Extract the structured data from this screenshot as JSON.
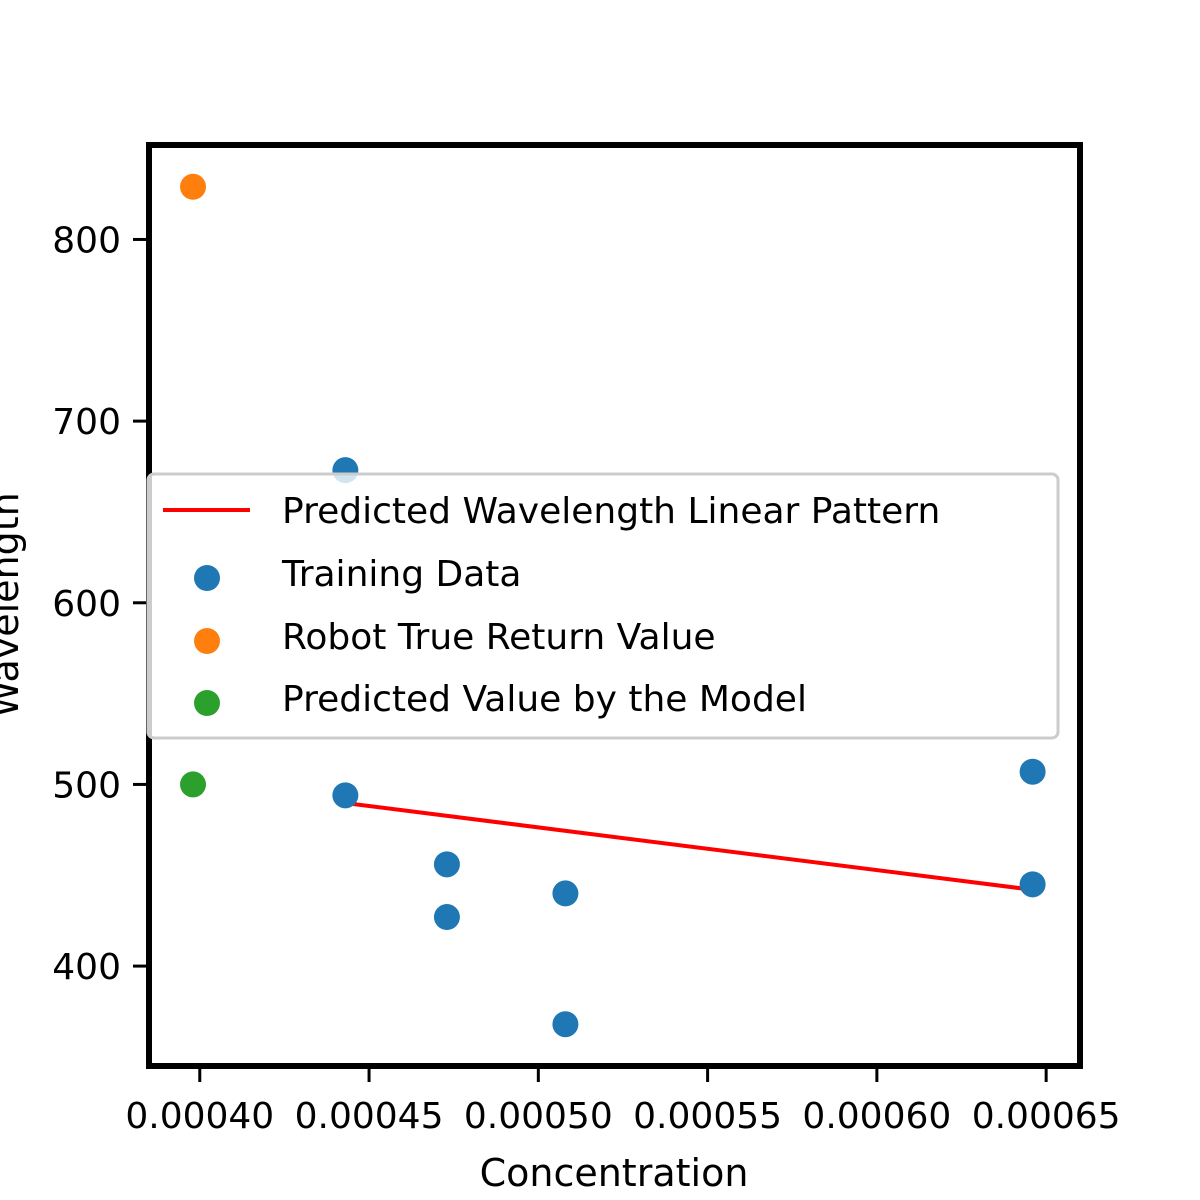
{
  "chart_data": {
    "type": "scatter",
    "title": "",
    "xlabel": "Concentration",
    "ylabel": "Wavelength",
    "xlim": [
      0.000385,
      0.00066
    ],
    "ylim": [
      345,
      852
    ],
    "xticks": [
      0.0004,
      0.00045,
      0.0005,
      0.00055,
      0.0006,
      0.00065
    ],
    "xtick_labels": [
      "0.00040",
      "0.00045",
      "0.00050",
      "0.00055",
      "0.00060",
      "0.00065"
    ],
    "yticks": [
      400,
      500,
      600,
      700,
      800
    ],
    "ytick_labels": [
      "400",
      "500",
      "600",
      "700",
      "800"
    ],
    "grid": false,
    "legend_position": "center-left",
    "series": [
      {
        "name": "Predicted Wavelength Linear Pattern",
        "kind": "line",
        "color": "#ff0000",
        "x": [
          0.000442,
          0.000646
        ],
        "y": [
          490,
          442
        ]
      },
      {
        "name": "Training Data",
        "kind": "scatter",
        "color": "#1f77b4",
        "x": [
          0.000443,
          0.000443,
          0.000473,
          0.000473,
          0.000508,
          0.000508,
          0.000646,
          0.000646
        ],
        "y": [
          673,
          494,
          456,
          427,
          440,
          368,
          507,
          445
        ]
      },
      {
        "name": "Robot True Return Value",
        "kind": "scatter",
        "color": "#ff7f0e",
        "x": [
          0.000398
        ],
        "y": [
          829
        ]
      },
      {
        "name": "Predicted Value by the Model",
        "kind": "scatter",
        "color": "#2ca02c",
        "x": [
          0.000398
        ],
        "y": [
          500
        ]
      }
    ]
  }
}
